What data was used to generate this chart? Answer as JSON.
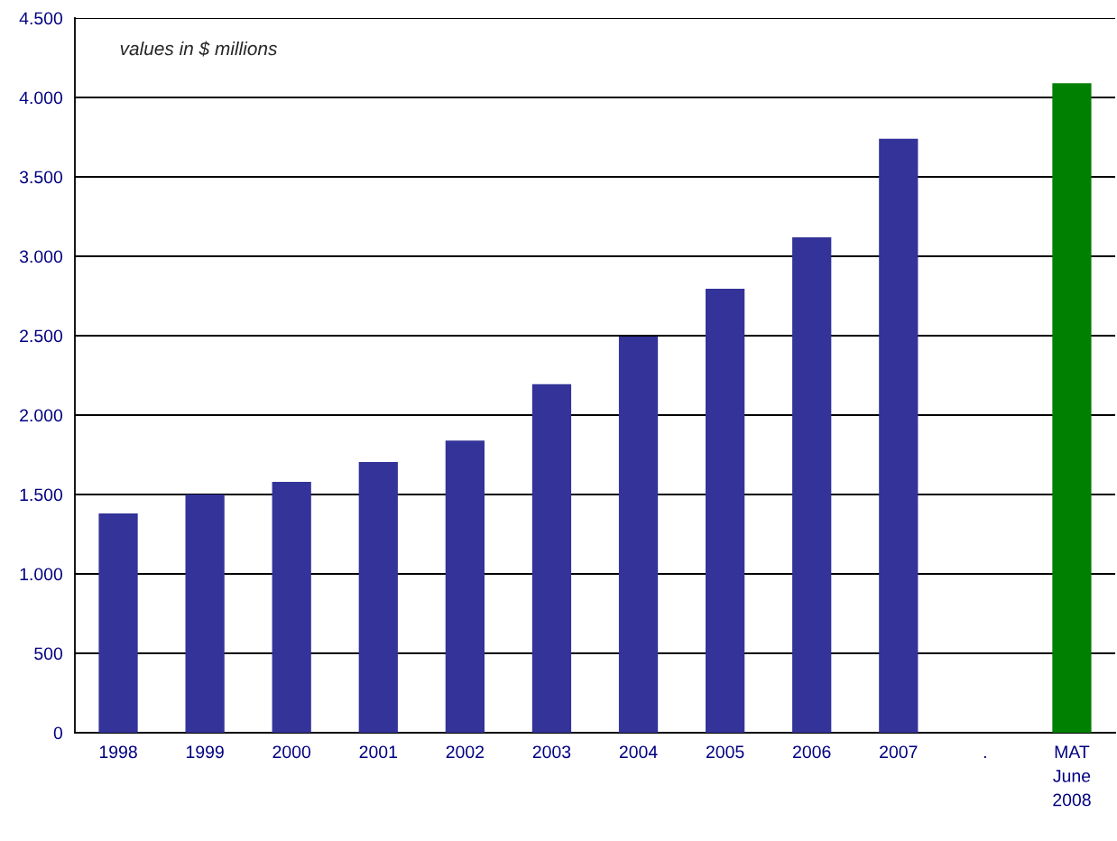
{
  "chart_data": {
    "type": "bar",
    "categories": [
      "1998",
      "1999",
      "2000",
      "2001",
      "2002",
      "2003",
      "2004",
      "2005",
      "2006",
      "2007",
      ".",
      "MAT\nJune\n2008"
    ],
    "values": [
      1380,
      1500,
      1580,
      1705,
      1840,
      2195,
      2495,
      2795,
      3120,
      3740,
      null,
      4090
    ],
    "colors": [
      "#333399",
      "#333399",
      "#333399",
      "#333399",
      "#333399",
      "#333399",
      "#333399",
      "#333399",
      "#333399",
      "#333399",
      "#333399",
      "#008000"
    ],
    "ylim": [
      0,
      4500
    ],
    "yticks": [
      0,
      500,
      {
        "value": 1000,
        "label": "1.000"
      },
      {
        "value": 1500,
        "label": "1.500"
      },
      {
        "value": 2000,
        "label": "2.000"
      },
      {
        "value": 2500,
        "label": "2.500"
      },
      {
        "value": 3000,
        "label": "3.000"
      },
      {
        "value": 3500,
        "label": "3.500"
      },
      {
        "value": 4000,
        "label": "4.000"
      },
      {
        "value": 4500,
        "label": "4.500"
      }
    ],
    "grid": "y",
    "annotations": [
      "values in $ millions"
    ]
  }
}
